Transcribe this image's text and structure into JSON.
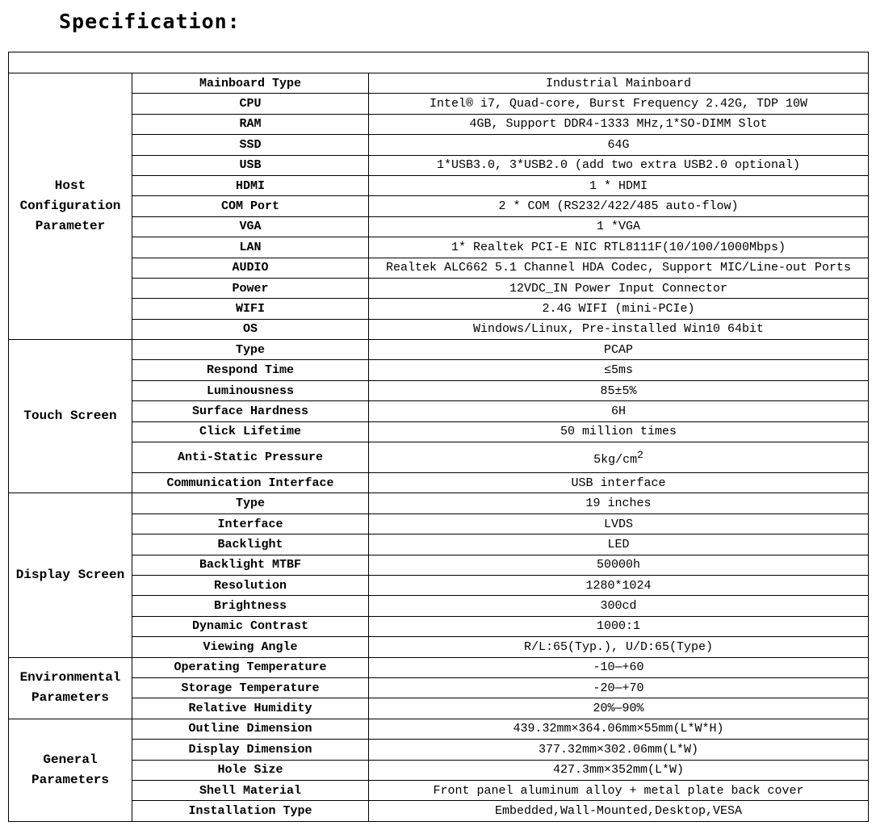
{
  "title": "Specification:",
  "header_row": "",
  "groups": [
    {
      "name": "Host Configuration Parameter",
      "rows": [
        {
          "label": "Mainboard Type",
          "value": "Industrial Mainboard"
        },
        {
          "label": "CPU",
          "value": "Intel® i7, Quad-core, Burst Frequency 2.42G, TDP 10W"
        },
        {
          "label": "RAM",
          "value": "4GB, Support DDR4-1333 MHz,1*SO-DIMM Slot"
        },
        {
          "label": "SSD",
          "value": "64G"
        },
        {
          "label": "USB",
          "value": "1*USB3.0, 3*USB2.0 (add two extra USB2.0 optional)"
        },
        {
          "label": "HDMI",
          "value": "1 * HDMI"
        },
        {
          "label": "COM Port",
          "value": "2 * COM (RS232/422/485 auto-flow)"
        },
        {
          "label": "VGA",
          "value": "1 *VGA"
        },
        {
          "label": "LAN",
          "value": "1* Realtek PCI-E NIC RTL8111F(10/100/1000Mbps)"
        },
        {
          "label": "AUDIO",
          "value": "Realtek ALC662 5.1 Channel HDA Codec, Support MIC/Line-out Ports"
        },
        {
          "label": "Power",
          "value": "12VDC_IN Power Input Connector"
        },
        {
          "label": "WIFI",
          "value": "2.4G WIFI (mini-PCIe)"
        },
        {
          "label": "OS",
          "value": "Windows/Linux,  Pre-installed Win10 64bit"
        }
      ]
    },
    {
      "name": "Touch Screen",
      "rows": [
        {
          "label": "Type",
          "value": "PCAP"
        },
        {
          "label": "Respond Time",
          "value": "≤5ms"
        },
        {
          "label": "Luminousness",
          "value": "85±5%"
        },
        {
          "label": "Surface Hardness",
          "value": "6H"
        },
        {
          "label": "Click Lifetime",
          "value": "50 million times"
        },
        {
          "label": "Anti-Static Pressure",
          "value": "5kg/cm",
          "sup": "2"
        },
        {
          "label": "Communication Interface",
          "value": "USB interface"
        }
      ]
    },
    {
      "name": "Display Screen",
      "rows": [
        {
          "label": "Type",
          "value": "19 inches"
        },
        {
          "label": "Interface",
          "value": "LVDS"
        },
        {
          "label": "Backlight",
          "value": "LED"
        },
        {
          "label": "Backlight MTBF",
          "value": "50000h"
        },
        {
          "label": "Resolution",
          "value": "1280*1024"
        },
        {
          "label": "Brightness",
          "value": "300cd"
        },
        {
          "label": "Dynamic Contrast",
          "value": "1000:1"
        },
        {
          "label": "Viewing Angle",
          "value": "R/L:65(Typ.), U/D:65(Type)"
        }
      ]
    },
    {
      "name": "Environmental Parameters",
      "rows": [
        {
          "label": "Operating Temperature",
          "value": "-10—+60"
        },
        {
          "label": "Storage Temperature",
          "value": "-20—+70"
        },
        {
          "label": "Relative Humidity",
          "value": "20%—90%"
        }
      ]
    },
    {
      "name": "General Parameters",
      "rows": [
        {
          "label": "Outline Dimension",
          "value": "439.32mm×364.06mm×55mm(L*W*H)"
        },
        {
          "label": "Display Dimension",
          "value": "377.32mm×302.06mm(L*W)"
        },
        {
          "label": "Hole Size",
          "value": "427.3mm×352mm(L*W)"
        },
        {
          "label": "Shell Material",
          "value": "Front panel aluminum alloy + metal plate back cover"
        },
        {
          "label": "Installation Type",
          "value": "Embedded,Wall-Mounted,Desktop,VESA"
        }
      ]
    }
  ]
}
